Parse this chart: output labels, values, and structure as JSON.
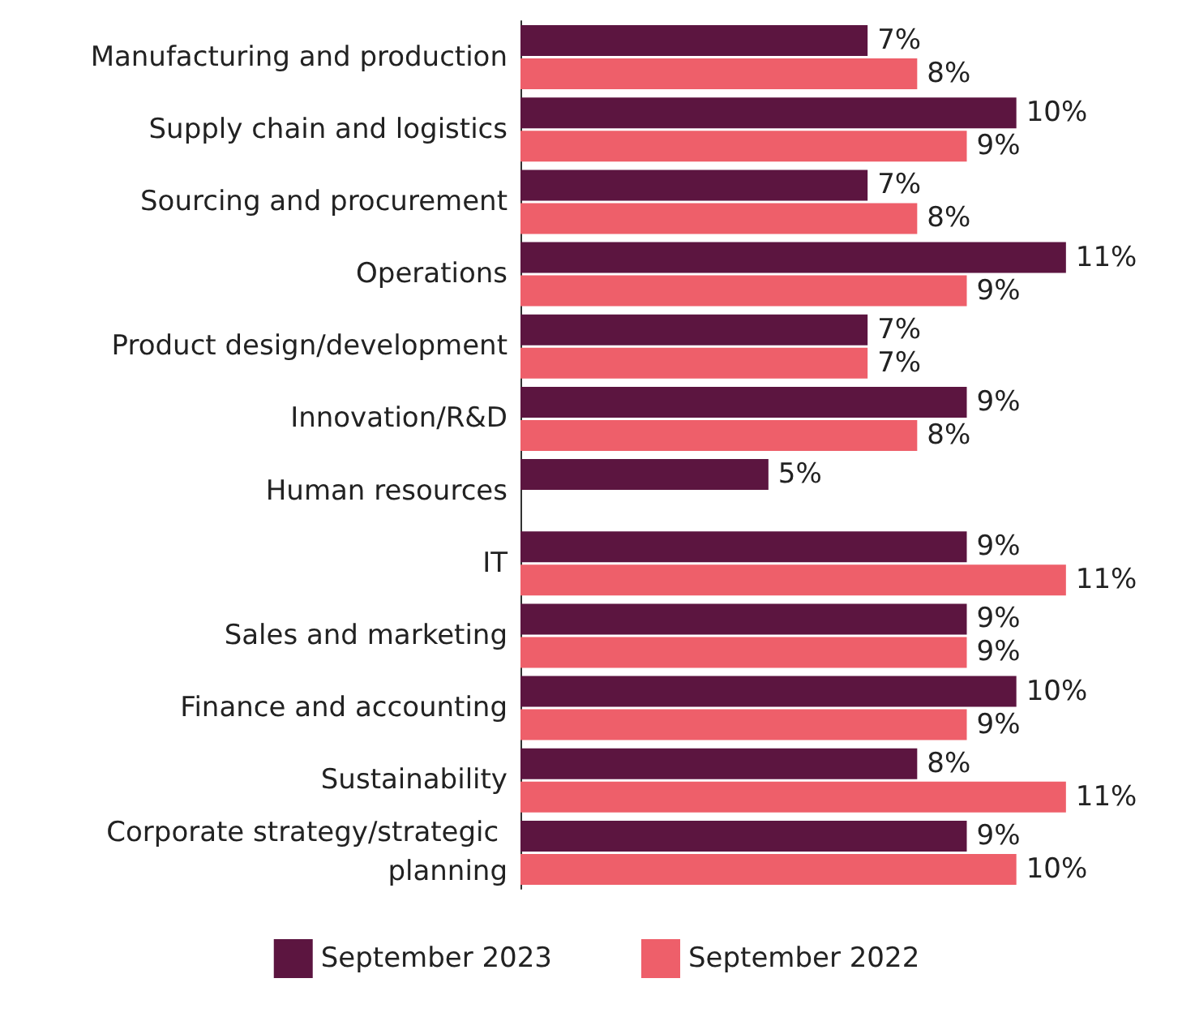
{
  "chart_data": {
    "type": "bar",
    "orientation": "horizontal",
    "categories": [
      "Manufacturing and production",
      "Supply chain and logistics",
      "Sourcing and procurement",
      "Operations",
      "Product design/development",
      "Innovation/R&D",
      "Human resources",
      "IT",
      "Sales and marketing",
      "Finance and accounting",
      "Sustainability",
      "Corporate strategy/strategic planning"
    ],
    "series": [
      {
        "name": "September 2023",
        "color": "#5c1540",
        "values": [
          7,
          10,
          7,
          11,
          7,
          9,
          5,
          9,
          9,
          10,
          8,
          9
        ],
        "value_labels": [
          "7%",
          "10%",
          "7%",
          "11%",
          "7%",
          "9%",
          "5%",
          "9%",
          "9%",
          "10%",
          "8%",
          "9%"
        ]
      },
      {
        "name": "September 2022",
        "color": "#ee5f6a",
        "values": [
          8,
          9,
          8,
          9,
          7,
          8,
          null,
          11,
          9,
          9,
          11,
          10
        ],
        "value_labels": [
          "8%",
          "9%",
          "8%",
          "9%",
          "7%",
          "8%",
          null,
          "11%",
          "9%",
          "9%",
          "11%",
          "10%"
        ]
      }
    ],
    "legend": "bottom"
  }
}
